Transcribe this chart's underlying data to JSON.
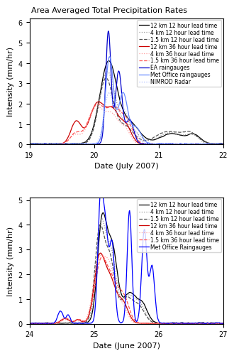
{
  "title": "Area Averaged Total Precipitation Rates",
  "ylabel": "Intensity (mm/hr)",
  "xlabel_july": "Date (July 2007)",
  "xlabel_june": "Date (June 2007)",
  "july_xlim": [
    19,
    22
  ],
  "june_xlim": [
    24,
    27
  ],
  "july_ylim": [
    0,
    6.2
  ],
  "june_ylim": [
    0,
    5.1
  ],
  "july_yticks": [
    0,
    1,
    2,
    3,
    4,
    5,
    6
  ],
  "june_yticks": [
    0,
    1,
    2,
    3,
    4,
    5
  ],
  "july_xticks": [
    19,
    20,
    21,
    22
  ],
  "june_xticks": [
    24,
    25,
    26,
    27
  ],
  "legend_july": [
    "12 km 12 hour lead time",
    "4 km 12 hour lead time",
    "1.5 km 12 hour lead time",
    "12 km 36 hour lead time",
    "4 km 36 hour lead time",
    "1.5 km 36 hour lead time",
    "EA raingauges",
    "Met Office raingauges",
    "NIMROD Radar"
  ],
  "legend_june": [
    "12 km 12 hour lead time",
    "4 km 12 hour lead time",
    "1.5 km 12 hour lead time",
    "12 km 36 hour lead time",
    "4 km 36 hour lead time",
    "1.5 km 36 hour lead time",
    "Met Office Raingauges"
  ],
  "colors": {
    "12km_12h": "#000000",
    "4km_12h": "#999999",
    "1p5km_12h": "#555555",
    "12km_36h": "#cc0000",
    "4km_36h": "#ff9999",
    "1p5km_36h": "#ff5555",
    "EA": "#0000cc",
    "MetOffice_july": "#6688ff",
    "NIMROD": "#aabbff",
    "MetOffice_june": "#0000ff"
  },
  "title_fontsize": 8,
  "legend_fontsize": 5.5,
  "tick_fontsize": 7,
  "label_fontsize": 8
}
